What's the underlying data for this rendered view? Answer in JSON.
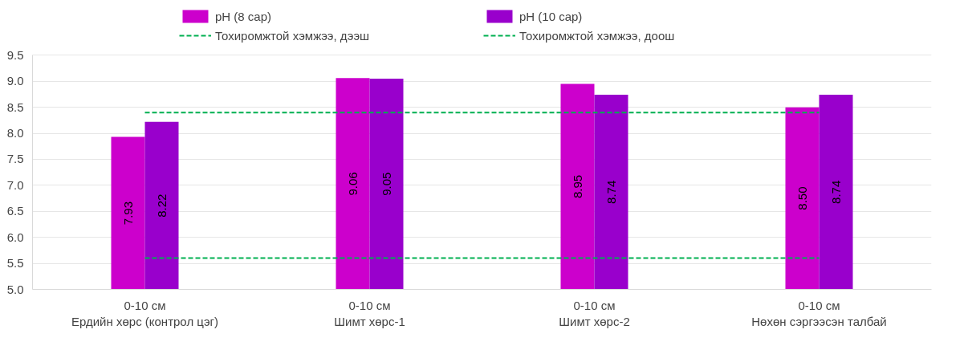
{
  "chart_data": {
    "type": "bar",
    "categories": [
      "0-10 см\nЕрдийн хөрс (контрол цэг)",
      "0-10 см\nШимт хөрс-1",
      "0-10 см\nШимт хөрс-2",
      "0-10 см\nНөхөн сэргээсэн талбай"
    ],
    "series": [
      {
        "name": "pH (8 сар)",
        "color": "#cc00cc",
        "values": [
          7.93,
          9.06,
          8.95,
          8.5
        ],
        "value_labels": [
          "7.93",
          "9.06",
          "8.95",
          "8.50"
        ]
      },
      {
        "name": "pH (10 сар)",
        "color": "#9900cc",
        "values": [
          8.22,
          9.05,
          8.74,
          8.74
        ],
        "value_labels": [
          "8.22",
          "9.05",
          "8.74",
          "8.74"
        ]
      },
      {
        "name": "Тохиромжтой хэмжээ, дээш",
        "type": "line",
        "line_style": "dashed",
        "marker": "none",
        "color": "#00b050",
        "values": [
          8.4,
          8.4,
          8.4,
          8.4
        ]
      },
      {
        "name": "Тохиромжтой хэмжээ, доош",
        "type": "line",
        "line_style": "dashed",
        "marker": "none",
        "color": "#00b050",
        "values": [
          5.6,
          5.6,
          5.6,
          5.6
        ]
      }
    ],
    "ylim": [
      5.0,
      9.5
    ],
    "yticks": [
      "5.0",
      "5.5",
      "6.0",
      "6.5",
      "7.0",
      "7.5",
      "8.0",
      "8.5",
      "9.0",
      "9.5"
    ],
    "grid": "y",
    "legend": "top"
  }
}
